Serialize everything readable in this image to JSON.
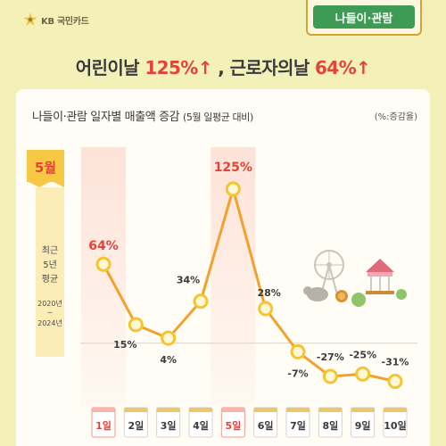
{
  "brand": {
    "name": "KB 국민카드"
  },
  "category_tab": {
    "label": "나들이·관람"
  },
  "headline": {
    "part1": "어린이날 ",
    "value1": "125%↑",
    "part2": " , 근로자의날 ",
    "value2": "64%↑"
  },
  "card": {
    "title": "나들이·관람 일자별 매출액 증감",
    "title_sub": "(5월 일평균 대비)",
    "unit": "(%:증감율)"
  },
  "month_tag": "5월",
  "period_note": {
    "line1": "최근",
    "line2": "5년",
    "line3": "평균",
    "range_start": "2020년",
    "range_sep": "~",
    "range_end": "2024년"
  },
  "chart_data": {
    "type": "line",
    "title": "나들이·관람 일자별 매출액 증감",
    "categories": [
      "1일",
      "2일",
      "3일",
      "4일",
      "5일",
      "6일",
      "7일",
      "8일",
      "9일",
      "10일"
    ],
    "values": [
      64,
      15,
      4,
      34,
      125,
      28,
      -7,
      -27,
      -25,
      -31
    ],
    "labels": [
      "64%",
      "15%",
      "4%",
      "34%",
      "125%",
      "28%",
      "-7%",
      "-27%",
      "-25%",
      "-31%"
    ],
    "highlight_days": [
      "1일",
      "5일"
    ],
    "ylim": [
      -40,
      130
    ],
    "grid": false,
    "baseline": 0
  },
  "colors": {
    "line": "#f2a22a",
    "marker_fill": "#fff8d6",
    "marker_stroke": "#f5c531",
    "highlight_text": "#e4433a",
    "highlight_band": "#fde2d8"
  }
}
